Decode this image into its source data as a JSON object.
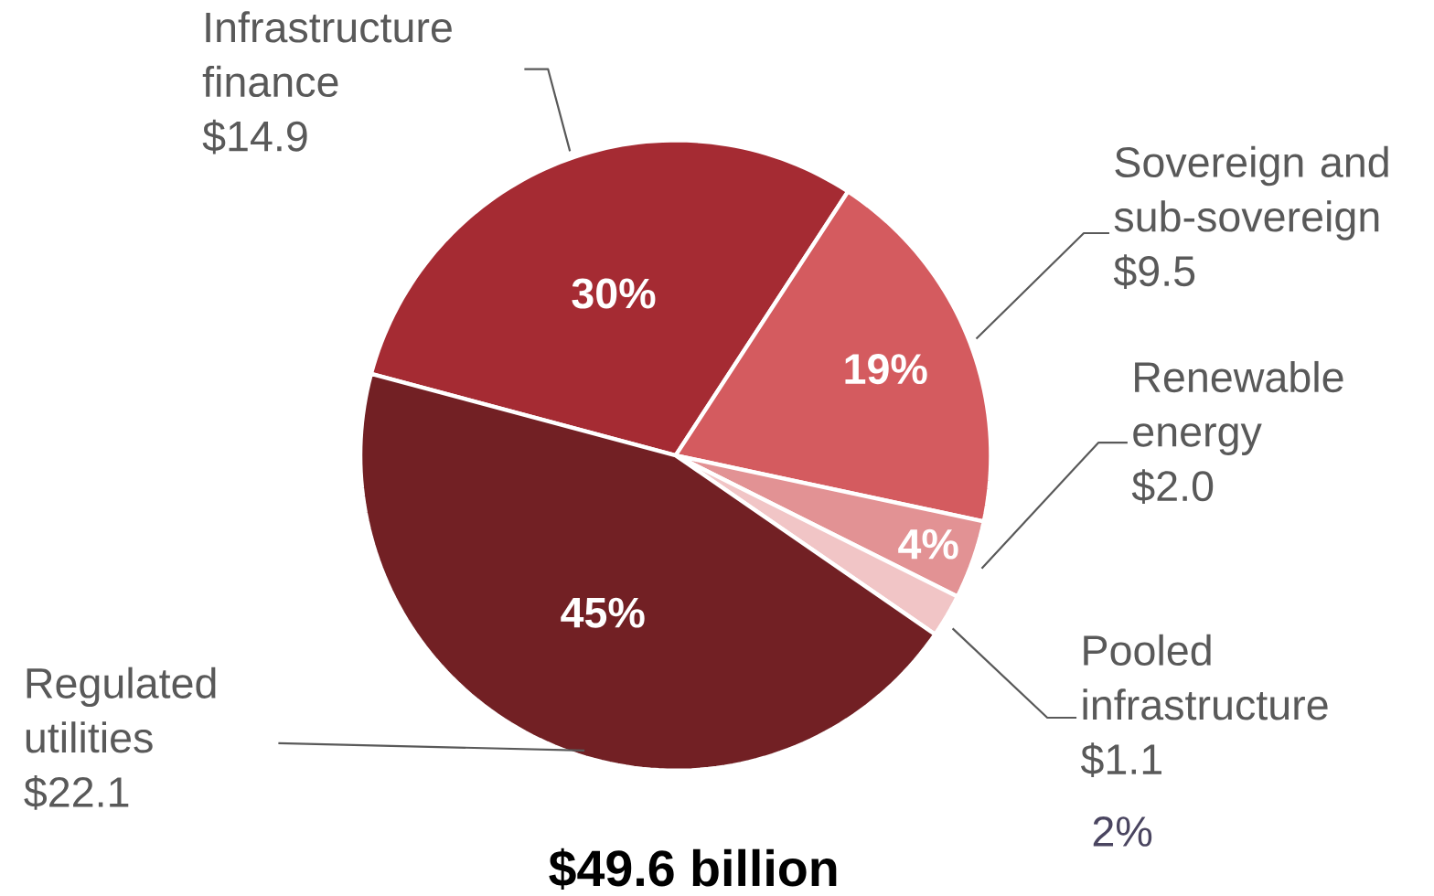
{
  "chart_data": {
    "type": "pie",
    "title": "$49.6 billion",
    "categories": [
      "Infrastructure finance",
      "Sovereign and sub-sovereign",
      "Renewable energy",
      "Pooled infrastructure",
      "Regulated utilities"
    ],
    "values": [
      14.9,
      9.5,
      2.0,
      1.1,
      22.1
    ],
    "value_labels": [
      "$14.9",
      "$9.5",
      "$2.0",
      "$1.1",
      "$22.1"
    ],
    "colors": [
      "#a52b33",
      "#d45b5f",
      "#e29294",
      "#f1c5c6",
      "#722024"
    ],
    "annotations": [
      {
        "text": "30%",
        "x": "Infrastructure finance"
      },
      {
        "text": "19%",
        "x": "Sovereign and sub-sovereign"
      },
      {
        "text": "4%",
        "x": "Renewable energy"
      },
      {
        "text": "2%",
        "x": "Pooled infrastructure"
      },
      {
        "text": "45%",
        "x": "Regulated utilities"
      }
    ]
  }
}
